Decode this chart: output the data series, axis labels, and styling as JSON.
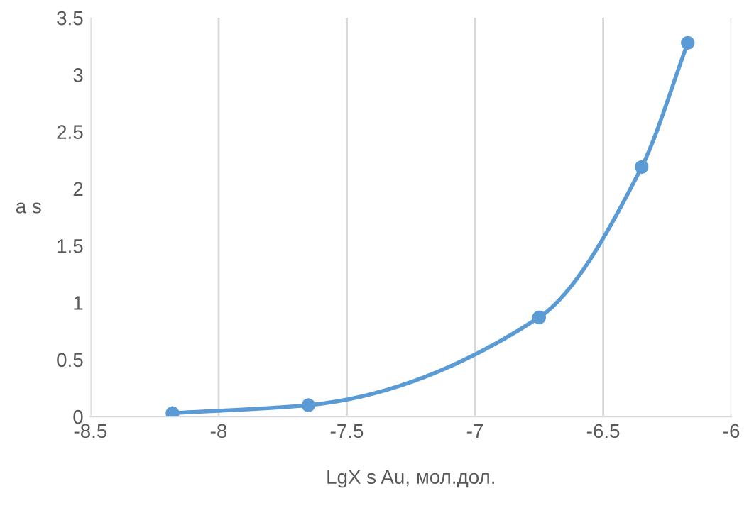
{
  "chart_data": {
    "type": "line",
    "xlabel": "LgX s Au, мол.дол.",
    "ylabel": "a s",
    "x": [
      -8.18,
      -7.65,
      -6.75,
      -6.35,
      -6.17
    ],
    "series": [
      {
        "color": "#5b9bd5",
        "values": [
          0.03,
          0.1,
          0.87,
          2.19,
          3.28
        ]
      }
    ],
    "xlim": [
      -8.5,
      -6
    ],
    "xticks": [
      -8.5,
      -8,
      -7.5,
      -7,
      -6.5,
      -6
    ],
    "ylim": [
      0,
      3.5
    ],
    "yticks": [
      0,
      0.5,
      1,
      1.5,
      2,
      2.5,
      3,
      3.5
    ],
    "grid": "x",
    "marker": "circle",
    "line_style": "solid"
  }
}
